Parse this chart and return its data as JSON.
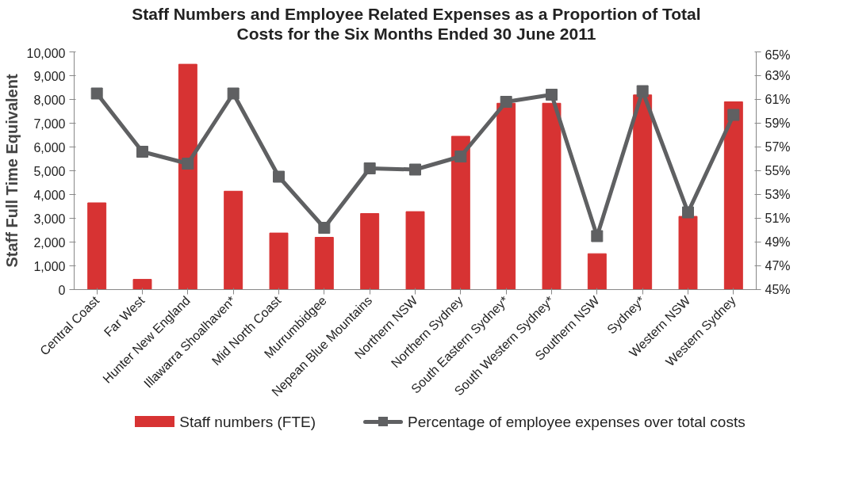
{
  "chart_data": {
    "type": "bar",
    "title": "Staff Numbers and Employee Related Expenses as a Proportion of Total Costs for the Six Months Ended 30 June 2011",
    "ylabel": "Staff Full Time Equivalent",
    "categories": [
      "Central Coast",
      "Far West",
      "Hunter New England",
      "Illawarra Shoalhaven*",
      "Mid North Coast",
      "Murrumbidgee",
      "Nepean Blue Mountains",
      "Northern NSW",
      "Northern Sydney",
      "South Eastern Sydney*",
      "South Western Sydney*",
      "Southern NSW",
      "Sydney*",
      "Western NSW",
      "Western Sydney"
    ],
    "ylim": [
      0,
      10000
    ],
    "yticks": [
      0,
      {
        "value": 1000,
        "label": "1,000"
      },
      {
        "value": 2000,
        "label": "2,000"
      },
      {
        "value": 3000,
        "label": "3,000"
      },
      {
        "value": 4000,
        "label": "4,000"
      },
      {
        "value": 5000,
        "label": "5,000"
      },
      {
        "value": 6000,
        "label": "6,000"
      },
      {
        "value": 7000,
        "label": "7,000"
      },
      {
        "value": 8000,
        "label": "8,000"
      },
      {
        "value": 9000,
        "label": "9,000"
      },
      {
        "value": 10000,
        "label": "10,000"
      }
    ],
    "y2lim": [
      45,
      65
    ],
    "y2ticks": [
      {
        "value": 45,
        "label": "45%"
      },
      {
        "value": 47,
        "label": "47%"
      },
      {
        "value": 49,
        "label": "49%"
      },
      {
        "value": 51,
        "label": "51%"
      },
      {
        "value": 53,
        "label": "53%"
      },
      {
        "value": 55,
        "label": "55%"
      },
      {
        "value": 57,
        "label": "57%"
      },
      {
        "value": 59,
        "label": "59%"
      },
      {
        "value": 61,
        "label": "61%"
      },
      {
        "value": 63,
        "label": "63%"
      },
      {
        "value": 65,
        "label": "65%"
      }
    ],
    "legend": "bottom",
    "series": [
      {
        "name": "Staff numbers (FTE)",
        "color": "#d73333",
        "values": [
          3650,
          430,
          9480,
          4140,
          2380,
          2200,
          3200,
          3280,
          6450,
          7840,
          7840,
          1510,
          8190,
          3080,
          7900
        ]
      },
      {
        "name": "Percentage of employee expenses over total costs",
        "type": "line",
        "axis": "y2",
        "marker": "square",
        "color": "#5f6062",
        "values": [
          61.5,
          56.6,
          55.6,
          61.5,
          54.5,
          50.2,
          55.2,
          55.1,
          56.2,
          60.8,
          61.4,
          49.5,
          61.7,
          51.5,
          59.7
        ]
      }
    ]
  }
}
